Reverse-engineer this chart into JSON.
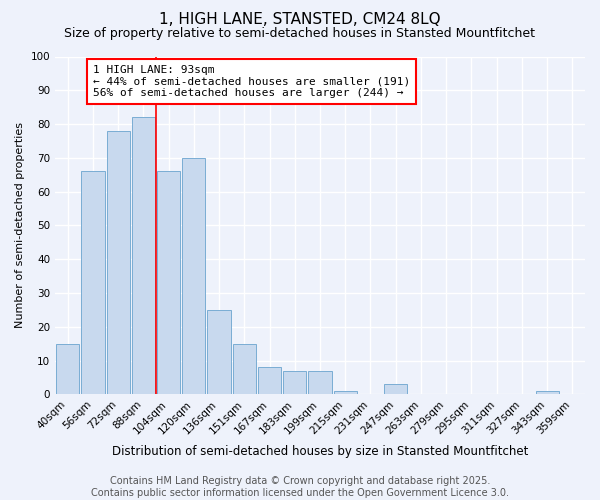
{
  "title": "1, HIGH LANE, STANSTED, CM24 8LQ",
  "subtitle": "Size of property relative to semi-detached houses in Stansted Mountfitchet",
  "xlabel": "Distribution of semi-detached houses by size in Stansted Mountfitchet",
  "ylabel": "Number of semi-detached properties",
  "categories": [
    "40sqm",
    "56sqm",
    "72sqm",
    "88sqm",
    "104sqm",
    "120sqm",
    "136sqm",
    "151sqm",
    "167sqm",
    "183sqm",
    "199sqm",
    "215sqm",
    "231sqm",
    "247sqm",
    "263sqm",
    "279sqm",
    "295sqm",
    "311sqm",
    "327sqm",
    "343sqm",
    "359sqm"
  ],
  "values": [
    15,
    66,
    78,
    82,
    66,
    70,
    25,
    15,
    8,
    7,
    7,
    1,
    0,
    3,
    0,
    0,
    0,
    0,
    0,
    1,
    0
  ],
  "bar_color": "#c8d9ee",
  "bar_edge_color": "#7aadd4",
  "red_line_x": 3.5,
  "annotation_title": "1 HIGH LANE: 93sqm",
  "annotation_line1": "← 44% of semi-detached houses are smaller (191)",
  "annotation_line2": "56% of semi-detached houses are larger (244) →",
  "ylim": [
    0,
    100
  ],
  "yticks": [
    0,
    10,
    20,
    30,
    40,
    50,
    60,
    70,
    80,
    90,
    100
  ],
  "footer1": "Contains HM Land Registry data © Crown copyright and database right 2025.",
  "footer2": "Contains public sector information licensed under the Open Government Licence 3.0.",
  "bg_color": "#eef2fb",
  "grid_color": "#ffffff",
  "title_fontsize": 11,
  "subtitle_fontsize": 9,
  "ylabel_fontsize": 8,
  "xlabel_fontsize": 8.5,
  "tick_fontsize": 7.5,
  "footer_fontsize": 7,
  "annot_fontsize": 8
}
